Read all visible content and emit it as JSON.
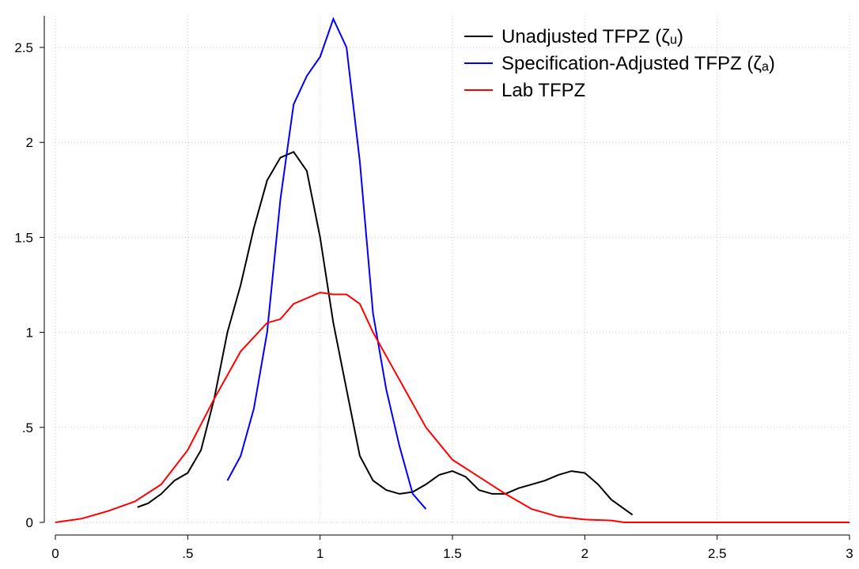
{
  "chart_data": {
    "type": "line",
    "xlim": [
      0,
      3
    ],
    "ylim": [
      0,
      2.5
    ],
    "grid": true,
    "legend": "top-right",
    "xticks": [
      0,
      {
        "value": 0.5,
        "label": ".5"
      },
      1,
      {
        "value": 1.5,
        "label": "1.5"
      },
      2,
      {
        "value": 2.5,
        "label": "2.5"
      },
      3
    ],
    "yticks": [
      0,
      {
        "value": 0.5,
        "label": ".5"
      },
      1,
      {
        "value": 1.5,
        "label": "1.5"
      },
      2,
      {
        "value": 2.5,
        "label": "2.5"
      }
    ],
    "series": [
      {
        "name": "Unadjusted TFPZ (ζᵤ)",
        "color": "#000000",
        "x": [
          0.31,
          0.35,
          0.4,
          0.45,
          0.5,
          0.55,
          0.6,
          0.65,
          0.7,
          0.75,
          0.8,
          0.85,
          0.9,
          0.95,
          1.0,
          1.05,
          1.1,
          1.15,
          1.2,
          1.25,
          1.3,
          1.35,
          1.4,
          1.45,
          1.5,
          1.55,
          1.6,
          1.65,
          1.7,
          1.75,
          1.8,
          1.85,
          1.9,
          1.95,
          2.0,
          2.05,
          2.1,
          2.15,
          2.18
        ],
        "values": [
          0.08,
          0.1,
          0.15,
          0.22,
          0.26,
          0.38,
          0.65,
          1.0,
          1.25,
          1.55,
          1.8,
          1.92,
          1.95,
          1.85,
          1.5,
          1.05,
          0.7,
          0.35,
          0.22,
          0.17,
          0.15,
          0.16,
          0.2,
          0.25,
          0.27,
          0.24,
          0.17,
          0.15,
          0.15,
          0.18,
          0.2,
          0.22,
          0.25,
          0.27,
          0.26,
          0.2,
          0.12,
          0.07,
          0.04
        ]
      },
      {
        "name": "Specification-Adjusted TFPZ (ζₐ)",
        "color": "#0000ff",
        "x": [
          0.65,
          0.7,
          0.75,
          0.8,
          0.85,
          0.9,
          0.95,
          1.0,
          1.05,
          1.1,
          1.15,
          1.2,
          1.25,
          1.3,
          1.35,
          1.4
        ],
        "values": [
          0.22,
          0.35,
          0.6,
          1.0,
          1.7,
          2.2,
          2.35,
          2.45,
          2.65,
          2.5,
          1.9,
          1.1,
          0.7,
          0.4,
          0.15,
          0.07
        ]
      },
      {
        "name": "Lab TFPZ",
        "color": "#ff0000",
        "x": [
          0,
          0.05,
          0.1,
          0.2,
          0.3,
          0.4,
          0.5,
          0.6,
          0.7,
          0.8,
          0.85,
          0.9,
          1.0,
          1.05,
          1.1,
          1.15,
          1.2,
          1.3,
          1.4,
          1.5,
          1.6,
          1.7,
          1.8,
          1.9,
          2.0,
          2.1,
          2.15,
          3.0
        ],
        "values": [
          0,
          0.01,
          0.02,
          0.06,
          0.11,
          0.2,
          0.38,
          0.65,
          0.9,
          1.05,
          1.07,
          1.15,
          1.21,
          1.2,
          1.2,
          1.15,
          1.0,
          0.75,
          0.5,
          0.33,
          0.24,
          0.15,
          0.07,
          0.03,
          0.015,
          0.01,
          0,
          0
        ]
      }
    ]
  }
}
